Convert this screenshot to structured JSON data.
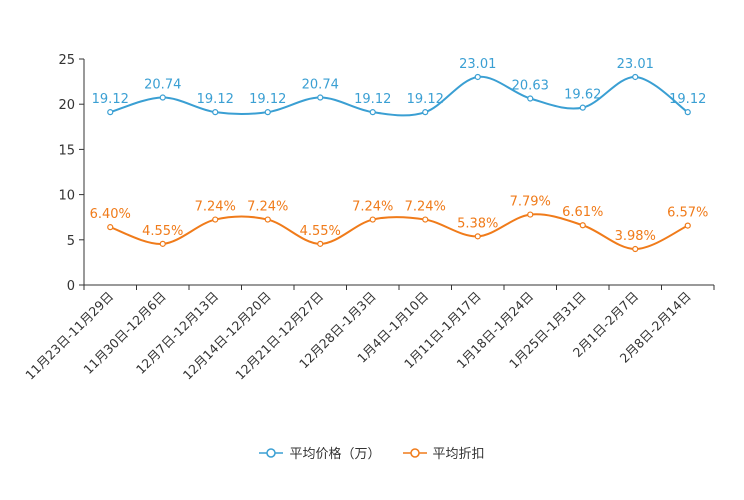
{
  "chart_data": {
    "type": "line",
    "categories": [
      "11月23日-11月29日",
      "11月30日-12月6日",
      "12月7日-12月13日",
      "12月14日-12月20日",
      "12月21日-12月27日",
      "12月28日-1月3日",
      "1月4日-1月10日",
      "1月11日-1月17日",
      "1月18日-1月24日",
      "1月25日-1月31日",
      "2月1日-2月7日",
      "2月8日-2月14日"
    ],
    "ylim": [
      0,
      25
    ],
    "yticks": [
      "0",
      "5",
      "10",
      "15",
      "20",
      "25"
    ],
    "smooth": true,
    "series": [
      {
        "name": "平均价格（万）",
        "color": "#3a9fd3",
        "values": [
          19.12,
          20.74,
          19.12,
          19.12,
          20.74,
          19.12,
          19.12,
          23.01,
          20.63,
          19.62,
          23.01,
          19.12
        ],
        "labels": [
          "19.12",
          "20.74",
          "19.12",
          "19.12",
          "20.74",
          "19.12",
          "19.12",
          "23.01",
          "20.63",
          "19.62",
          "23.01",
          "19.12"
        ]
      },
      {
        "name": "平均折扣",
        "color": "#f07b1a",
        "values": [
          6.4,
          4.55,
          7.24,
          7.24,
          4.55,
          7.24,
          7.24,
          5.38,
          7.79,
          6.61,
          3.98,
          6.57
        ],
        "labels": [
          "6.40%",
          "4.55%",
          "7.24%",
          "7.24%",
          "4.55%",
          "7.24%",
          "7.24%",
          "5.38%",
          "7.79%",
          "6.61%",
          "3.98%",
          "6.57%"
        ]
      }
    ],
    "legend_position": "bottom-center"
  }
}
